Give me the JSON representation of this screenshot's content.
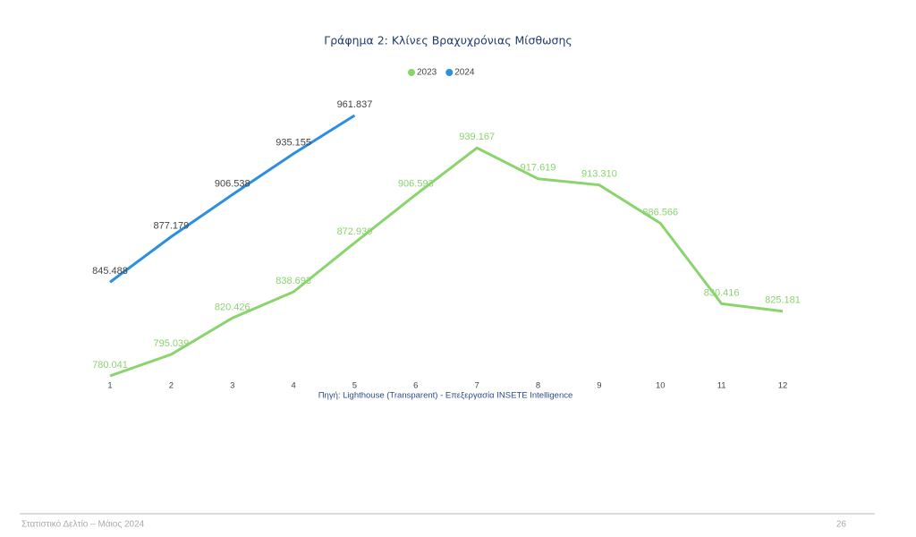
{
  "chart_data": {
    "type": "line",
    "title": "Γράφημα 2: Κλίνες Βραχυχρόνιας Μίσθωσης",
    "source": "Πηγή: Lighthouse (Transparent) - Επεξεργασία INSETE Intelligence",
    "categories": [
      "1",
      "2",
      "3",
      "4",
      "5",
      "6",
      "7",
      "8",
      "9",
      "10",
      "11",
      "12"
    ],
    "legend": "top",
    "series": [
      {
        "name": "2023",
        "color": "#8ad46e",
        "values": [
          780041,
          795039,
          820426,
          838693,
          872930,
          906593,
          939167,
          917619,
          913310,
          886566,
          830416,
          825181
        ],
        "value_labels": [
          "780.041",
          "795.039",
          "820.426",
          "838.693",
          "872.930",
          "906.593",
          "939.167",
          "917.619",
          "913.310",
          "886.566",
          "830.416",
          "825.181"
        ]
      },
      {
        "name": "2024",
        "color": "#2a8fe0",
        "values": [
          845488,
          877179,
          906538,
          935155,
          961837,
          null,
          null,
          null,
          null,
          null,
          null,
          null
        ],
        "value_labels": [
          "845.488",
          "877.179",
          "906.538",
          "935.155",
          "961.837",
          null,
          null,
          null,
          null,
          null,
          null,
          null
        ]
      }
    ]
  },
  "footer": {
    "left": "Στατιστικό Δελτίο – Μάιος 2024",
    "page": "26"
  }
}
